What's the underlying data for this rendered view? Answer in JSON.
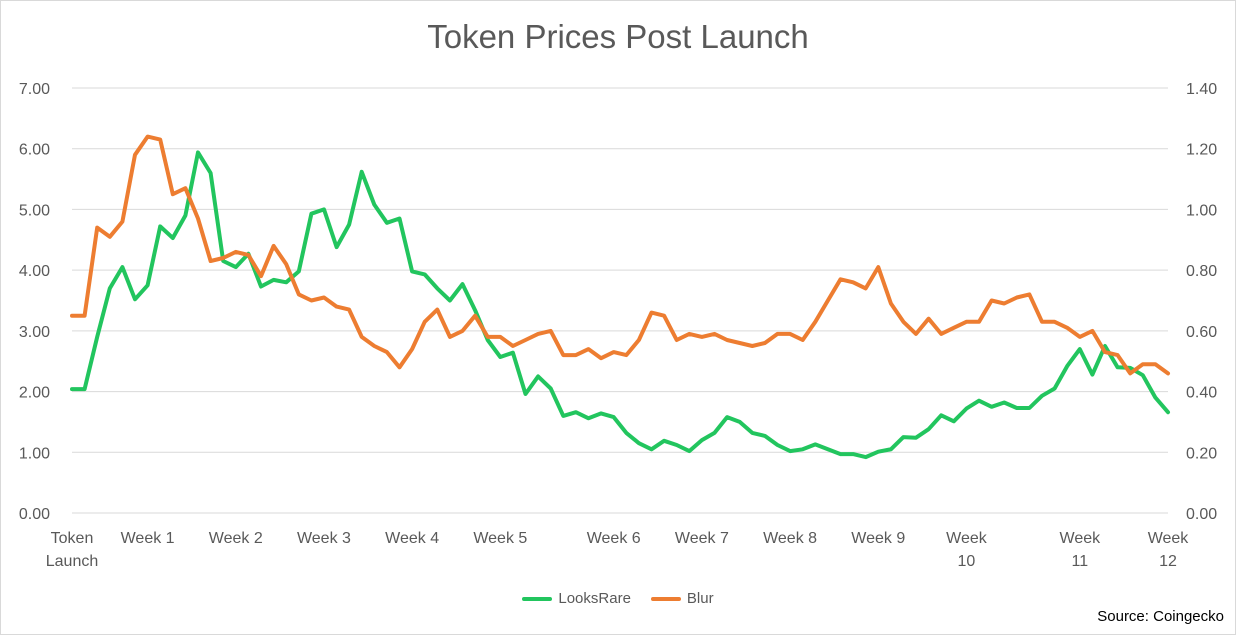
{
  "chart_data": {
    "type": "line",
    "title": "Token Prices Post Launch",
    "source": "Source: Coingecko",
    "x_labels": [
      {
        "idx": 0,
        "lines": [
          "Token",
          "Launch"
        ]
      },
      {
        "idx": 6,
        "lines": [
          "Week 1"
        ]
      },
      {
        "idx": 13,
        "lines": [
          "Week 2"
        ]
      },
      {
        "idx": 20,
        "lines": [
          "Week 3"
        ]
      },
      {
        "idx": 27,
        "lines": [
          "Week 4"
        ]
      },
      {
        "idx": 34,
        "lines": [
          "Week 5"
        ]
      },
      {
        "idx": 43,
        "lines": [
          "Week 6"
        ]
      },
      {
        "idx": 50,
        "lines": [
          "Week 7"
        ]
      },
      {
        "idx": 57,
        "lines": [
          "Week 8"
        ]
      },
      {
        "idx": 64,
        "lines": [
          "Week 9"
        ]
      },
      {
        "idx": 71,
        "lines": [
          "Week",
          "10"
        ]
      },
      {
        "idx": 80,
        "lines": [
          "Week",
          "11"
        ]
      },
      {
        "idx": 87,
        "lines": [
          "Week",
          "12"
        ]
      }
    ],
    "y_left": {
      "min": 0,
      "max": 7,
      "step": 1,
      "ticks": [
        "0.00",
        "1.00",
        "2.00",
        "3.00",
        "4.00",
        "5.00",
        "6.00",
        "7.00"
      ]
    },
    "y_right": {
      "min": 0,
      "max": 1.4,
      "step": 0.2,
      "ticks": [
        "0.00",
        "0.20",
        "0.40",
        "0.60",
        "0.80",
        "1.00",
        "1.20",
        "1.40"
      ]
    },
    "grid": true,
    "legend_position": "bottom",
    "series": [
      {
        "name": "LooksRare",
        "axis": "left",
        "color": "#22c55e",
        "values": [
          2.04,
          2.04,
          2.9,
          3.7,
          4.05,
          3.52,
          3.75,
          4.72,
          4.53,
          4.9,
          5.94,
          5.6,
          4.15,
          4.05,
          4.27,
          3.73,
          3.84,
          3.8,
          3.98,
          4.93,
          5.0,
          4.38,
          4.75,
          5.62,
          5.08,
          4.78,
          4.85,
          3.98,
          3.93,
          3.7,
          3.5,
          3.77,
          3.34,
          2.85,
          2.57,
          2.64,
          1.96,
          2.25,
          2.05,
          1.6,
          1.66,
          1.56,
          1.64,
          1.58,
          1.32,
          1.15,
          1.05,
          1.19,
          1.12,
          1.02,
          1.2,
          1.32,
          1.58,
          1.5,
          1.32,
          1.27,
          1.12,
          1.02,
          1.05,
          1.13,
          1.05,
          0.97,
          0.97,
          0.92,
          1.01,
          1.05,
          1.25,
          1.24,
          1.38,
          1.61,
          1.51,
          1.72,
          1.85,
          1.75,
          1.82,
          1.73,
          1.73,
          1.93,
          2.05,
          2.42,
          2.7,
          2.28,
          2.75,
          2.4,
          2.39,
          2.27,
          1.9,
          1.66
        ]
      },
      {
        "name": "Blur",
        "axis": "right",
        "color": "#ed7d31",
        "values": [
          0.65,
          0.65,
          0.94,
          0.91,
          0.96,
          1.18,
          1.24,
          1.23,
          1.05,
          1.07,
          0.97,
          0.83,
          0.84,
          0.86,
          0.85,
          0.78,
          0.88,
          0.82,
          0.72,
          0.7,
          0.71,
          0.68,
          0.67,
          0.58,
          0.55,
          0.53,
          0.48,
          0.54,
          0.63,
          0.67,
          0.58,
          0.6,
          0.65,
          0.58,
          0.58,
          0.55,
          0.57,
          0.59,
          0.6,
          0.52,
          0.52,
          0.54,
          0.51,
          0.53,
          0.52,
          0.57,
          0.66,
          0.65,
          0.57,
          0.59,
          0.58,
          0.59,
          0.57,
          0.56,
          0.55,
          0.56,
          0.59,
          0.59,
          0.57,
          0.63,
          0.7,
          0.77,
          0.76,
          0.74,
          0.81,
          0.69,
          0.63,
          0.59,
          0.64,
          0.59,
          0.61,
          0.63,
          0.63,
          0.7,
          0.69,
          0.71,
          0.72,
          0.63,
          0.63,
          0.61,
          0.58,
          0.6,
          0.53,
          0.52,
          0.46,
          0.49,
          0.49,
          0.46
        ]
      }
    ]
  }
}
